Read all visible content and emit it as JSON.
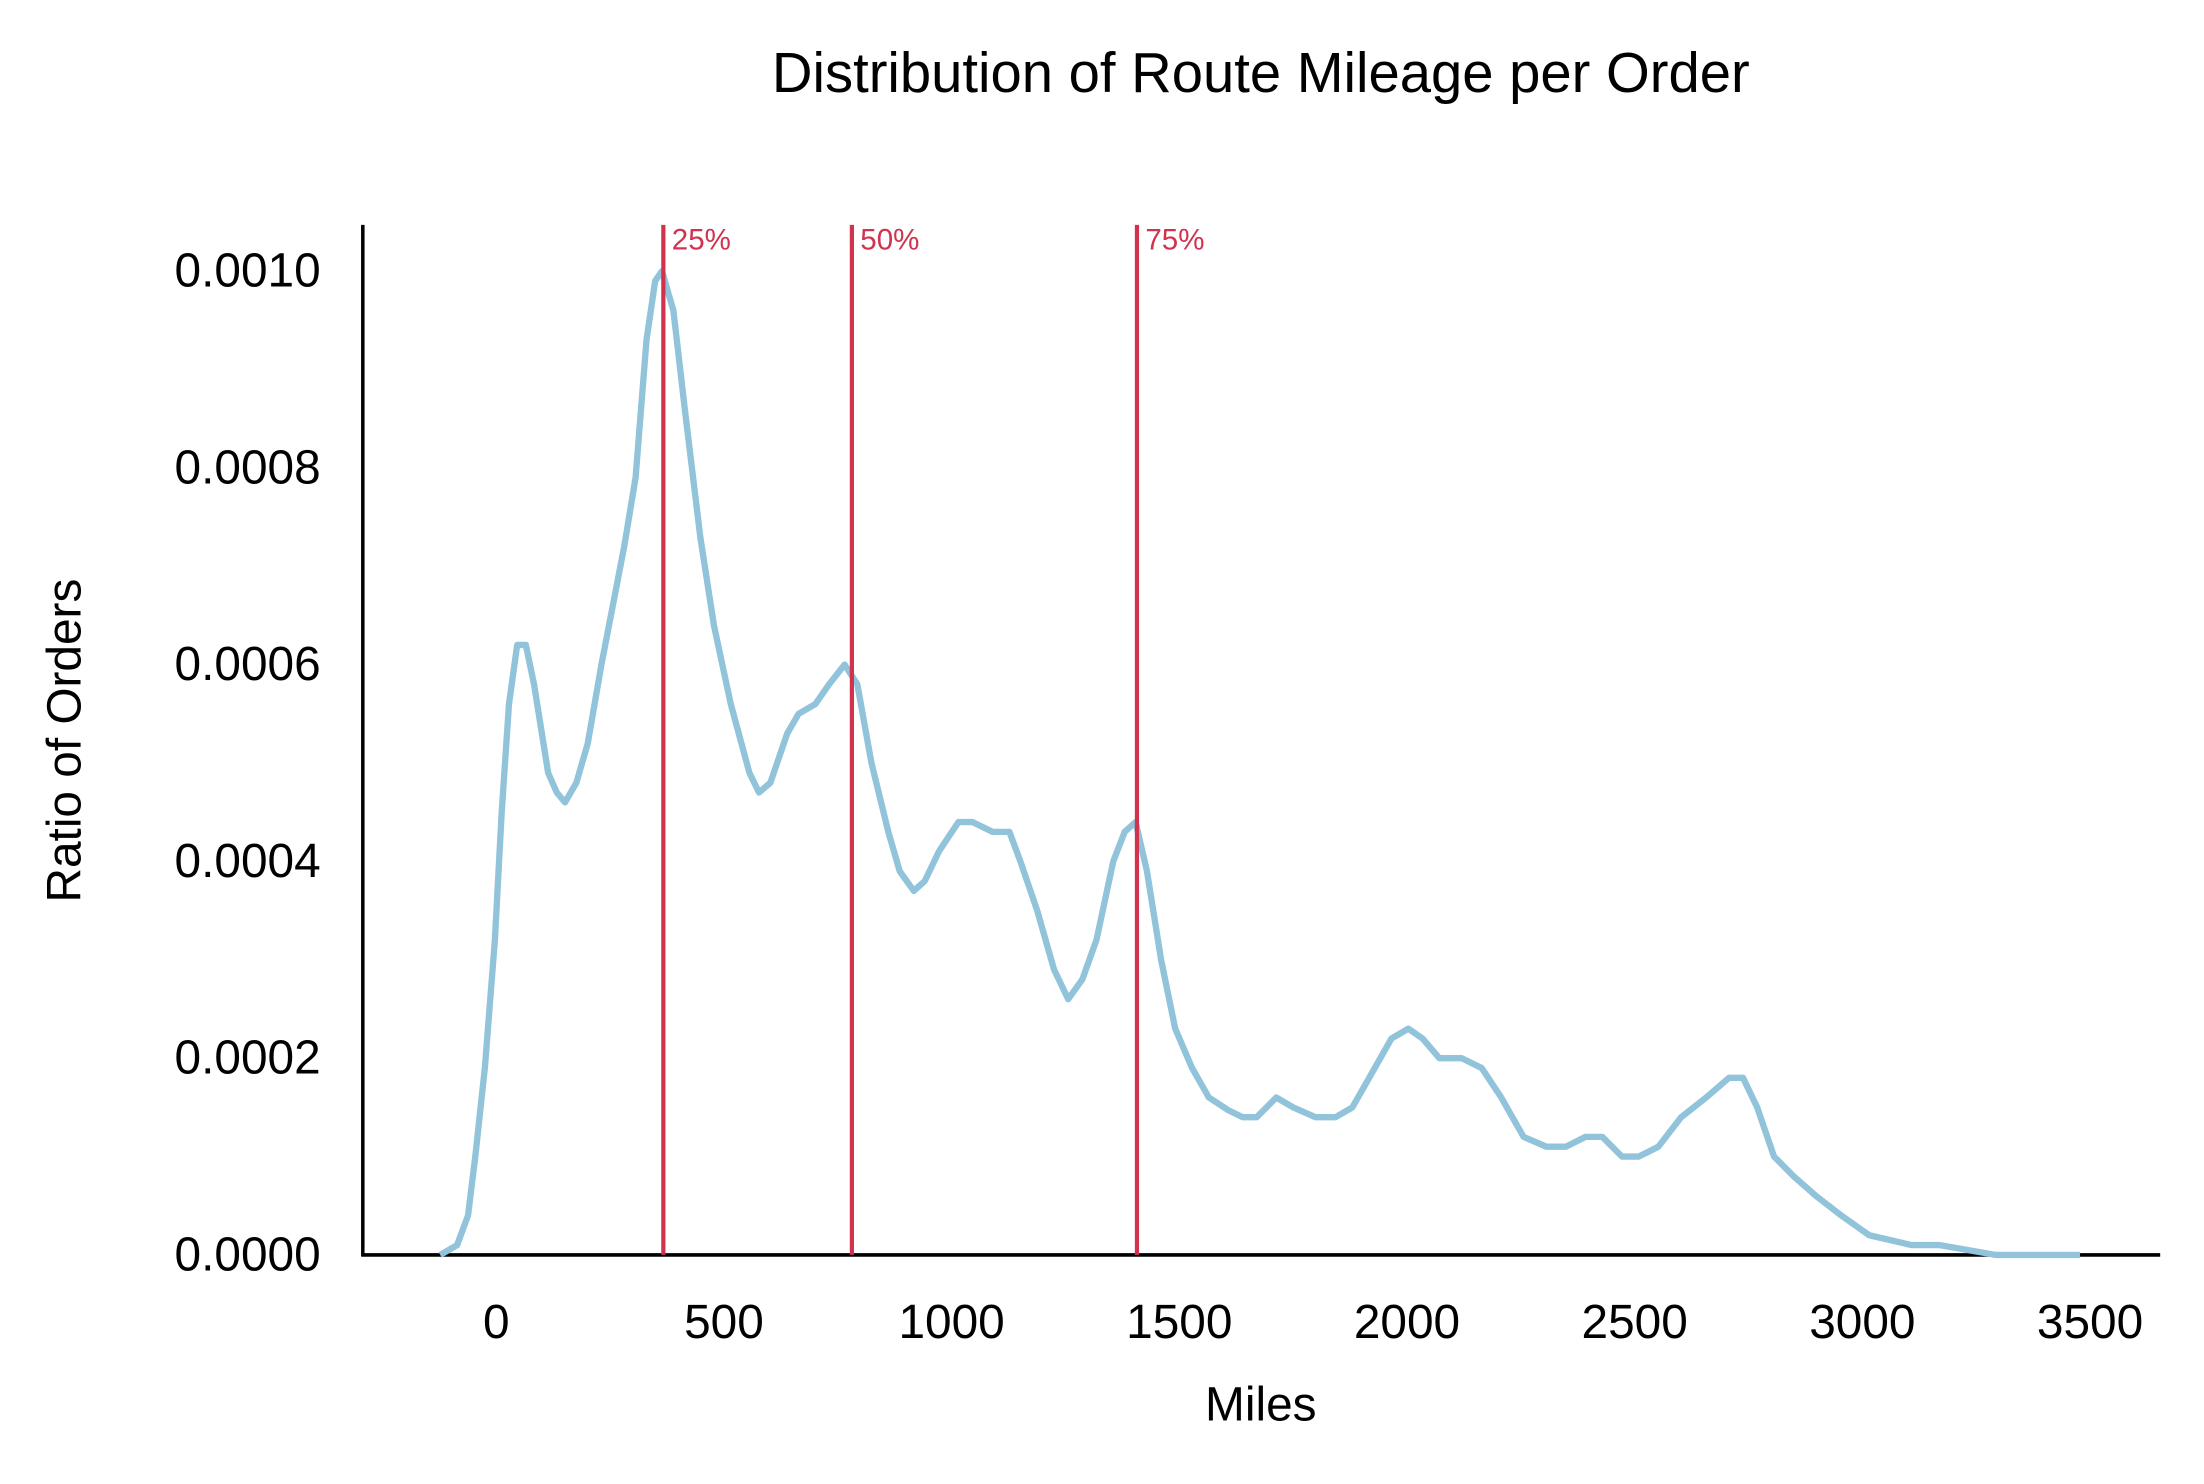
{
  "chart_data": {
    "type": "line",
    "title": "Distribution of Route Mileage per Order",
    "x_label": "Miles",
    "y_label": "Ratio of Orders",
    "xlim": [
      -293,
      3654
    ],
    "ylim": [
      0,
      0.001047
    ],
    "xticks": [
      0,
      500,
      1000,
      1500,
      2000,
      2500,
      3000,
      3500
    ],
    "yticks": [
      {
        "value": 0,
        "label": "0.0000"
      },
      {
        "value": 0.0002,
        "label": "0.0002"
      },
      {
        "value": 0.0004,
        "label": "0.0004"
      },
      {
        "value": 0.0006,
        "label": "0.0006"
      },
      {
        "value": 0.0008,
        "label": "0.0008"
      },
      {
        "value": 0.001,
        "label": "0.0010"
      }
    ],
    "grid": false,
    "series": [
      {
        "color": "#91c3da",
        "x": [
          -123,
          -86,
          -62,
          -46,
          -25,
          -3,
          12,
          28,
          46,
          65,
          83,
          114,
          133,
          151,
          176,
          201,
          231,
          281,
          306,
          330,
          349,
          364,
          389,
          414,
          448,
          478,
          515,
          556,
          577,
          602,
          639,
          664,
          701,
          731,
          765,
          793,
          824,
          861,
          886,
          917,
          941,
          972,
          1015,
          1046,
          1090,
          1127,
          1151,
          1188,
          1225,
          1256,
          1287,
          1318,
          1355,
          1380,
          1404,
          1429,
          1460,
          1491,
          1528,
          1565,
          1608,
          1639,
          1670,
          1713,
          1750,
          1799,
          1843,
          1880,
          1917,
          1966,
          2003,
          2034,
          2071,
          2120,
          2164,
          2207,
          2256,
          2306,
          2349,
          2392,
          2429,
          2472,
          2509,
          2552,
          2602,
          2657,
          2707,
          2738,
          2769,
          2806,
          2849,
          2898,
          2954,
          3015,
          3108,
          3170,
          3293,
          3478
        ],
        "values": [
          0,
          1e-05,
          4e-05,
          0.0001,
          0.00019,
          0.00032,
          0.00045,
          0.00056,
          0.00062,
          0.00062,
          0.00058,
          0.00049,
          0.00047,
          0.00046,
          0.00048,
          0.00052,
          0.0006,
          0.00072,
          0.00079,
          0.00093,
          0.00099,
          0.001,
          0.00096,
          0.00086,
          0.00073,
          0.00064,
          0.00056,
          0.00049,
          0.00047,
          0.00048,
          0.00053,
          0.00055,
          0.00056,
          0.00058,
          0.0006,
          0.00058,
          0.0005,
          0.00043,
          0.00039,
          0.00037,
          0.00038,
          0.00041,
          0.00044,
          0.00044,
          0.00043,
          0.00043,
          0.0004,
          0.00035,
          0.00029,
          0.00026,
          0.00028,
          0.00032,
          0.0004,
          0.00043,
          0.00044,
          0.00039,
          0.0003,
          0.00023,
          0.00019,
          0.00016,
          0.000147,
          0.00014,
          0.00014,
          0.00016,
          0.00015,
          0.00014,
          0.00014,
          0.00015,
          0.00018,
          0.00022,
          0.00023,
          0.00022,
          0.0002,
          0.0002,
          0.00019,
          0.00016,
          0.00012,
          0.00011,
          0.00011,
          0.00012,
          0.00012,
          0.0001,
          0.0001,
          0.00011,
          0.00014,
          0.00016,
          0.00018,
          0.00018,
          0.00015,
          0.0001,
          8e-05,
          6e-05,
          4e-05,
          2e-05,
          1e-05,
          1e-05,
          0,
          0
        ]
      }
    ],
    "quantile_color": "#d1334f",
    "quantiles": [
      {
        "value": 367,
        "label": "25%"
      },
      {
        "value": 781,
        "label": "50%"
      },
      {
        "value": 1407,
        "label": "75%"
      }
    ]
  }
}
